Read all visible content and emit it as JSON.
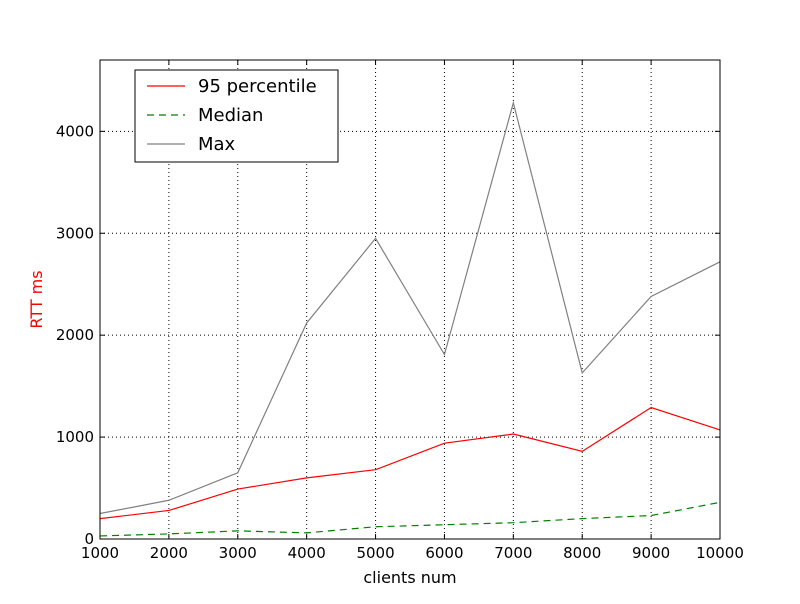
{
  "chart_data": {
    "type": "line",
    "title": "",
    "xlabel": "clients num",
    "ylabel": "RTT ms",
    "ylabel_color": "#ff0000",
    "xlim": [
      1000,
      10000
    ],
    "ylim": [
      0,
      4700
    ],
    "x_ticks": [
      1000,
      2000,
      3000,
      4000,
      5000,
      6000,
      7000,
      8000,
      9000,
      10000
    ],
    "y_ticks": [
      0,
      1000,
      2000,
      3000,
      4000
    ],
    "grid": true,
    "legend_position": "top-left",
    "x": [
      1000,
      2000,
      3000,
      4000,
      5000,
      6000,
      7000,
      8000,
      9000,
      10000
    ],
    "series": [
      {
        "name": "95 percentile",
        "color": "#ff0000",
        "dash": "solid",
        "values": [
          200,
          280,
          490,
          600,
          680,
          940,
          1030,
          860,
          1290,
          1070
        ]
      },
      {
        "name": "Median",
        "color": "#008000",
        "dash": "dashed",
        "values": [
          30,
          50,
          80,
          60,
          120,
          140,
          160,
          200,
          230,
          360
        ]
      },
      {
        "name": "Max",
        "color": "#808080",
        "dash": "solid",
        "values": [
          250,
          380,
          650,
          2120,
          2950,
          1810,
          4280,
          1630,
          2380,
          2720
        ]
      }
    ]
  }
}
